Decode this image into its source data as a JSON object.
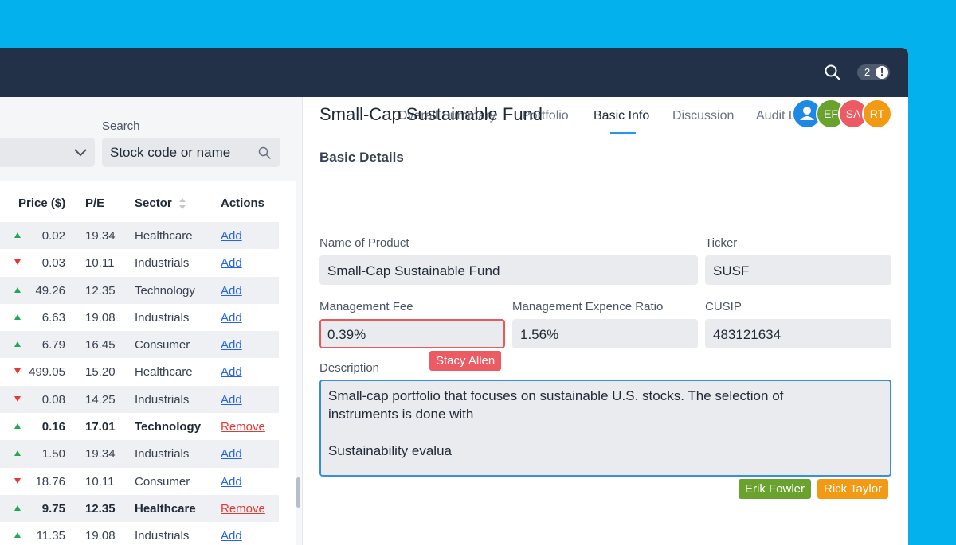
{
  "header": {
    "notification_count": "2",
    "notification_alert": "!"
  },
  "filters": {
    "search_label": "Search",
    "search_placeholder": "Stock code or name"
  },
  "table": {
    "headers": {
      "price": "Price ($)",
      "pe": "P/E",
      "sector": "Sector",
      "actions": "Actions"
    },
    "rows": [
      {
        "dir": "up",
        "price": "0.02",
        "pe": "19.34",
        "sector": "Healthcare",
        "action": "Add",
        "bold": false
      },
      {
        "dir": "down",
        "price": "0.03",
        "pe": "10.11",
        "sector": "Industrials",
        "action": "Add",
        "bold": false
      },
      {
        "dir": "up",
        "price": "49.26",
        "pe": "12.35",
        "sector": "Technology",
        "action": "Add",
        "bold": false
      },
      {
        "dir": "up",
        "price": "6.63",
        "pe": "19.08",
        "sector": "Industrials",
        "action": "Add",
        "bold": false
      },
      {
        "dir": "up",
        "price": "6.79",
        "pe": "16.45",
        "sector": "Consumer",
        "action": "Add",
        "bold": false
      },
      {
        "dir": "down",
        "price": "499.05",
        "pe": "15.20",
        "sector": "Healthcare",
        "action": "Add",
        "bold": false
      },
      {
        "dir": "down",
        "price": "0.08",
        "pe": "14.25",
        "sector": "Industrials",
        "action": "Add",
        "bold": false
      },
      {
        "dir": "up",
        "price": "0.16",
        "pe": "17.01",
        "sector": "Technology",
        "action": "Remove",
        "bold": true
      },
      {
        "dir": "up",
        "price": "1.50",
        "pe": "19.34",
        "sector": "Industrials",
        "action": "Add",
        "bold": false
      },
      {
        "dir": "down",
        "price": "18.76",
        "pe": "10.11",
        "sector": "Consumer",
        "action": "Add",
        "bold": false
      },
      {
        "dir": "up",
        "price": "9.75",
        "pe": "12.35",
        "sector": "Healthcare",
        "action": "Remove",
        "bold": true
      },
      {
        "dir": "up",
        "price": "11.35",
        "pe": "19.08",
        "sector": "Industrials",
        "action": "Add",
        "bold": false
      }
    ]
  },
  "tabs": [
    {
      "label": "Overall Summary"
    },
    {
      "label": "Portfolio"
    },
    {
      "label": "Basic Info"
    },
    {
      "label": "Discussion"
    },
    {
      "label": "Audit Log"
    }
  ],
  "fund": {
    "title": "Small-Cap Sustainable Fund",
    "avatars": [
      {
        "initials": "",
        "color": "#1e88e5"
      },
      {
        "initials": "EF",
        "color": "#6aa22e"
      },
      {
        "initials": "SA",
        "color": "#ec5b63"
      },
      {
        "initials": "RT",
        "color": "#f39a15"
      }
    ]
  },
  "basic_details": {
    "section_title": "Basic Details",
    "name_label": "Name of Product",
    "name_value": "Small-Cap Sustainable Fund",
    "ticker_label": "Ticker",
    "ticker_value": "SUSF",
    "fee_label": "Management Fee",
    "fee_value": "0.39%",
    "fee_editor": "Stacy Allen",
    "ratio_label": "Management Expence Ratio",
    "ratio_value": "1.56%",
    "cusip_label": "CUSIP",
    "cusip_value": "483121634",
    "description_label": "Description",
    "description_value": "Small-cap portfolio that focuses on sustainable U.S. stocks. The selection of\ninstruments is done with\n\nSustainability evalua",
    "description_editors": [
      "Erik Fowler",
      "Rick Taylor"
    ]
  },
  "colors": {
    "up_arrow": "#22a94f",
    "down_arrow": "#e53935",
    "editor_stacy": "#ec5b63",
    "editor_erik": "#6aa22e",
    "editor_rick": "#f39a15"
  }
}
